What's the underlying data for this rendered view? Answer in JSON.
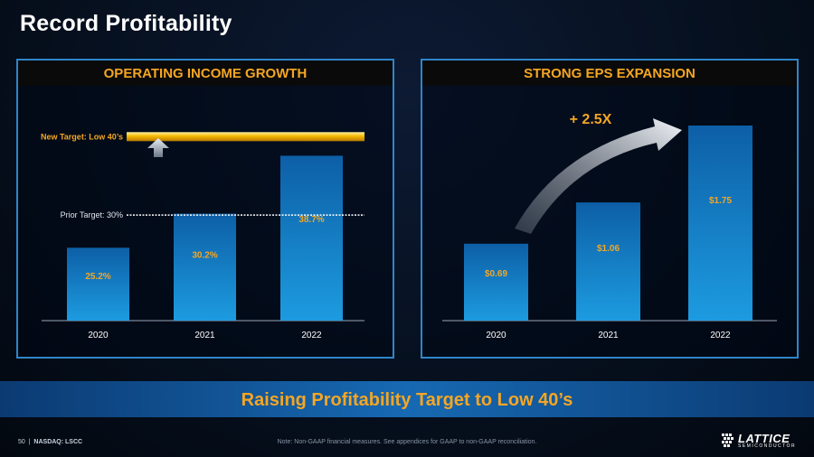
{
  "slide": {
    "title": "Record Profitability",
    "banner": "Raising Profitability Target to Low 40’s",
    "page_number": "50",
    "ticker": "NASDAQ: LSCC",
    "footnote": "Note: Non-GAAP financial measures. See appendices for GAAP to non-GAAP reconciliation.",
    "logo_main": "LATTICE",
    "logo_sub": "SEMICONDUCTOR"
  },
  "chart_data": [
    {
      "type": "bar",
      "title": "OPERATING INCOME GROWTH",
      "categories": [
        "2020",
        "2021",
        "2022"
      ],
      "values": [
        25.2,
        30.2,
        38.7
      ],
      "labels": [
        "25.2%",
        "30.2%",
        "38.7%"
      ],
      "unit": "%",
      "ylim": [
        14.5,
        43
      ],
      "annotations": {
        "prior_target": {
          "label": "Prior Target: 30%",
          "value": 30
        },
        "new_target": {
          "label": "New Target: Low 40’s",
          "value": 41.5
        }
      },
      "colors": {
        "bar_top": "#1d9be0",
        "bar_bottom": "#0d5fa6",
        "target": "#f5b800",
        "label": "#f5a623"
      }
    },
    {
      "type": "bar",
      "title": "STRONG EPS EXPANSION",
      "categories": [
        "2020",
        "2021",
        "2022"
      ],
      "values": [
        0.69,
        1.06,
        1.75
      ],
      "labels": [
        "$0.69",
        "$1.06",
        "$1.75"
      ],
      "unit": "$",
      "ylim": [
        0,
        1.75
      ],
      "annotations": {
        "growth": {
          "label": "+ 2.5X"
        }
      },
      "colors": {
        "bar_top": "#1d9be0",
        "bar_bottom": "#0d5fa6",
        "label": "#f5a623"
      }
    }
  ]
}
